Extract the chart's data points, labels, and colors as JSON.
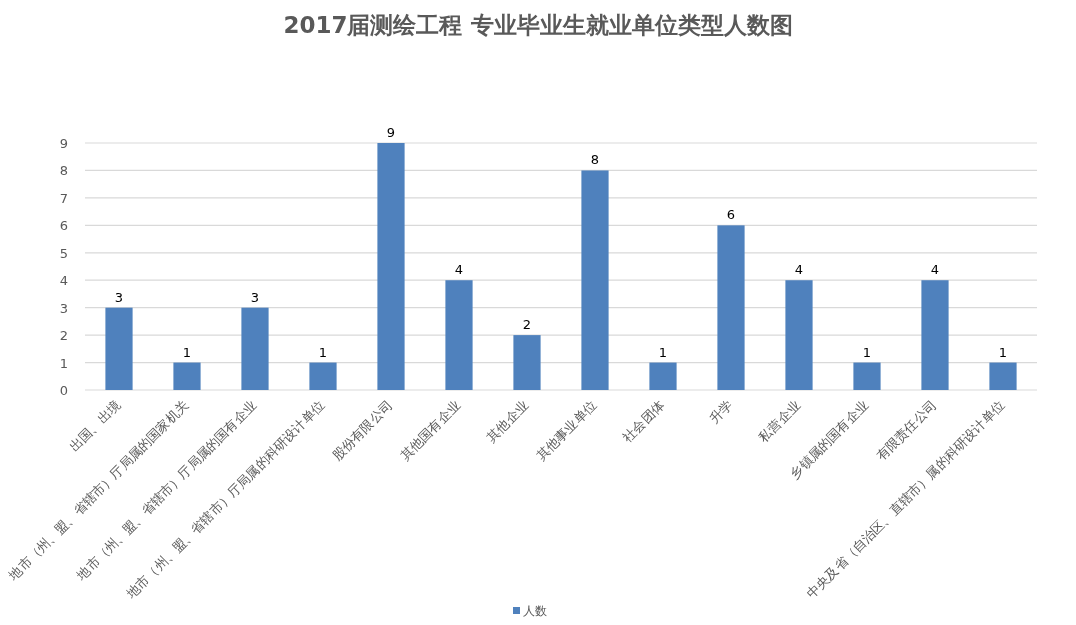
{
  "chart_data": {
    "type": "bar",
    "title": "2017届测绘工程 专业毕业生就业单位类型人数图",
    "categories": [
      "出国、出境",
      "地市（州、盟、省辖市）厅局属的国家机关",
      "地市（州、盟、省辖市）厅局属的国有企业",
      "地市（州、盟、省辖市）厅局属的科研设计单位",
      "股份有限公司",
      "其他国有企业",
      "其他企业",
      "其他事业单位",
      "社会团体",
      "升学",
      "私营企业",
      "乡镇属的国有企业",
      "有限责任公司",
      "中央及省（自治区、直辖市）属的科研设计单位"
    ],
    "series": [
      {
        "name": "人数",
        "color": "#4f81bd",
        "values": [
          3,
          1,
          3,
          1,
          9,
          4,
          2,
          8,
          1,
          6,
          4,
          1,
          4,
          1
        ]
      }
    ],
    "ylim": [
      0,
      9
    ],
    "yticks": [
      0,
      1,
      2,
      3,
      4,
      5,
      6,
      7,
      8,
      9
    ],
    "grid": "y",
    "legend": "bottom",
    "data_labels": true
  }
}
